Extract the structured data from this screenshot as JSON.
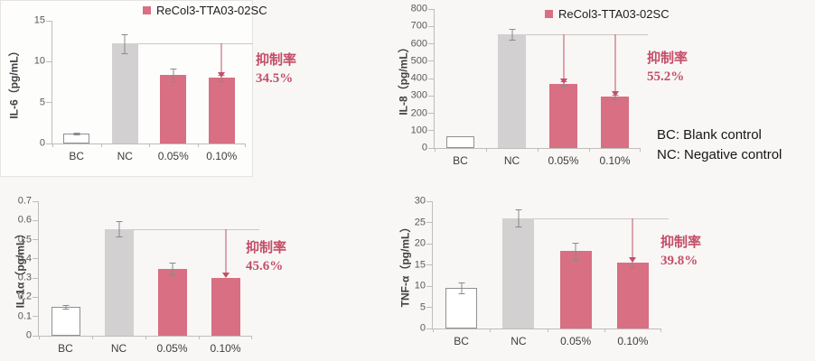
{
  "colors": {
    "bar_pink": "#d86f82",
    "bar_gray": "#d2d0d0",
    "bar_white": "#ffffff",
    "bar_outline": "#909090",
    "accent": "#c44e68",
    "axis": "#c0bcba",
    "ref_line": "#ccc7c4",
    "error_bar": "#8a8a8a",
    "stage_bg": "#f8f7f5",
    "panel_bg": "#fdfdfc",
    "panel_border": "#e6e3e0"
  },
  "note": {
    "line1": "BC: Blank control",
    "line2": "NC: Negative control"
  },
  "chart_data": [
    {
      "type": "bar",
      "name": "IL-6",
      "ylabel": "IL-6（pg/mL）",
      "ylim": [
        0,
        15
      ],
      "yticks": [
        "0",
        "5",
        "10",
        "15"
      ],
      "categories": [
        "BC",
        "NC",
        "0.05%",
        "0.10%"
      ],
      "values": [
        1.2,
        12.2,
        8.4,
        8.0
      ],
      "errors": [
        0.15,
        1.2,
        0.8,
        0.4
      ],
      "bar_styles": [
        "white",
        "gray",
        "pink",
        "pink"
      ],
      "legend": "ReCol3-TTA03-02SC",
      "ref_from": 1,
      "arrows": [
        3
      ],
      "annotation": {
        "label": "抑制率",
        "value": "34.5%"
      }
    },
    {
      "type": "bar",
      "name": "IL-8",
      "ylabel": "IL-8（pg/mL）",
      "ylim": [
        0,
        800
      ],
      "yticks": [
        "0",
        "100",
        "200",
        "300",
        "400",
        "500",
        "600",
        "700",
        "800"
      ],
      "categories": [
        "BC",
        "NC",
        "0.05%",
        "0.10%"
      ],
      "values": [
        70,
        655,
        370,
        295
      ],
      "errors": [
        0,
        30,
        12,
        12
      ],
      "bar_styles": [
        "white",
        "gray",
        "pink",
        "pink"
      ],
      "legend": "ReCol3-TTA03-02SC",
      "ref_from": 1,
      "arrows": [
        2,
        3
      ],
      "annotation": {
        "label": "抑制率",
        "value": "55.2%"
      }
    },
    {
      "type": "bar",
      "name": "IL-1α",
      "ylabel": "IL-1α（pg/mL）",
      "ylim": [
        0,
        0.7
      ],
      "yticks": [
        "0",
        "0.1",
        "0.2",
        "0.3",
        "0.4",
        "0.5",
        "0.6",
        "0.7"
      ],
      "categories": [
        "BC",
        "NC",
        "0.05%",
        "0.10%"
      ],
      "values": [
        0.15,
        0.555,
        0.35,
        0.3
      ],
      "errors": [
        0.008,
        0.04,
        0.03,
        0
      ],
      "bar_styles": [
        "white",
        "gray",
        "pink",
        "pink"
      ],
      "legend": null,
      "ref_from": 1,
      "arrows": [
        3
      ],
      "annotation": {
        "label": "抑制率",
        "value": "45.6%"
      }
    },
    {
      "type": "bar",
      "name": "TNF-α",
      "ylabel": "TNF-α（pg/mL）",
      "ylim": [
        0,
        30
      ],
      "yticks": [
        "0",
        "5",
        "10",
        "15",
        "20",
        "25",
        "30"
      ],
      "categories": [
        "BC",
        "NC",
        "0.05%",
        "0.10%"
      ],
      "values": [
        9.6,
        26,
        18.2,
        15.6
      ],
      "errors": [
        1.2,
        2.0,
        2.0,
        1.2
      ],
      "bar_styles": [
        "white",
        "gray",
        "pink",
        "pink"
      ],
      "legend": null,
      "ref_from": 1,
      "arrows": [
        3
      ],
      "annotation": {
        "label": "抑制率",
        "value": "39.8%"
      }
    }
  ]
}
